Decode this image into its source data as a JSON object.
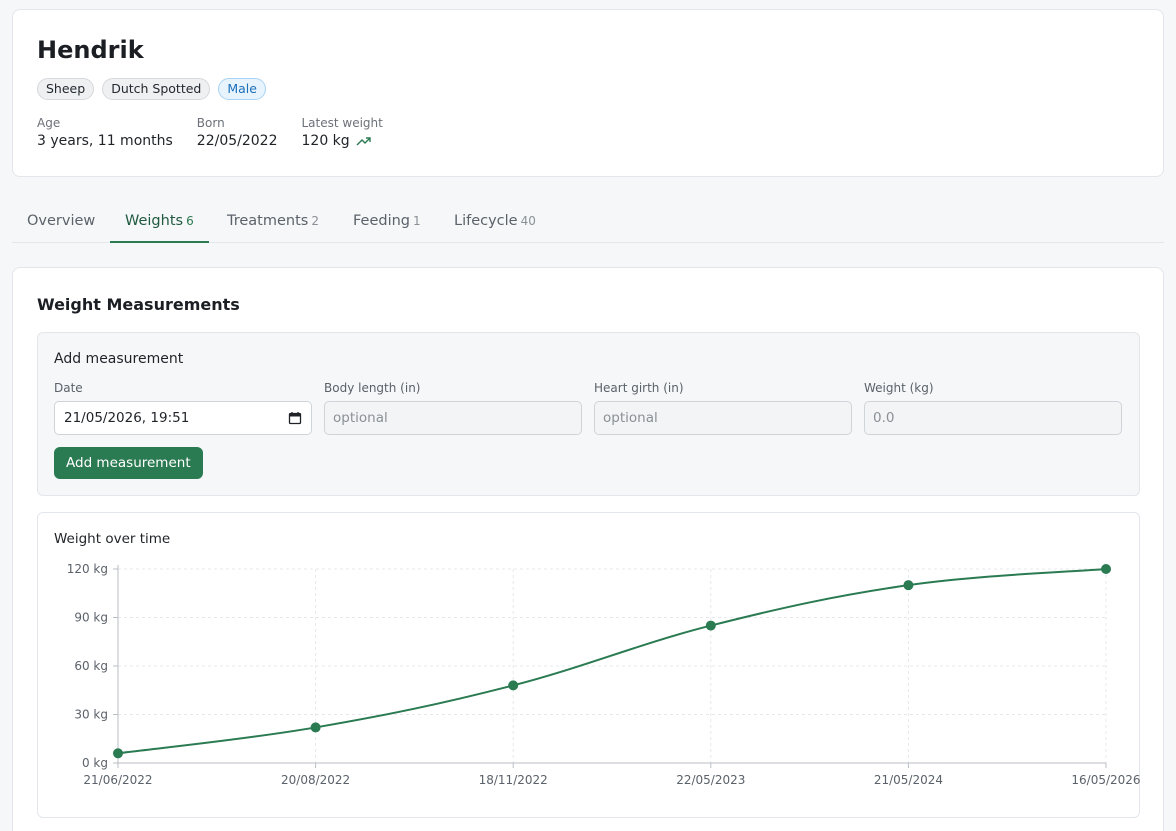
{
  "animal": {
    "name": "Hendrik",
    "tags": [
      "Sheep",
      "Dutch Spotted",
      "Male"
    ],
    "stats": [
      {
        "label": "Age",
        "value": "3 years, 11 months"
      },
      {
        "label": "Born",
        "value": "22/05/2022"
      },
      {
        "label": "Latest weight",
        "value": "120 kg",
        "icon": "trending-up-icon"
      }
    ]
  },
  "tabs": [
    {
      "label": "Overview",
      "count": ""
    },
    {
      "label": "Weights",
      "count": "6",
      "active": true
    },
    {
      "label": "Treatments",
      "count": "2"
    },
    {
      "label": "Feeding",
      "count": "1"
    },
    {
      "label": "Lifecycle",
      "count": "40"
    }
  ],
  "section": {
    "title": "Weight Measurements"
  },
  "form": {
    "title": "Add measurement",
    "date_label": "Date",
    "date_value": "21/05/2026, 19:51",
    "body_length_label": "Body length (in)",
    "body_length_placeholder": "optional",
    "heart_girth_label": "Heart girth (in)",
    "heart_girth_placeholder": "optional",
    "weight_label": "Weight (kg)",
    "weight_placeholder": "0.0",
    "submit_label": "Add measurement"
  },
  "colors": {
    "accent": "#2a7a52",
    "line": "#2a7a52",
    "male_tag": "#1d6fb8"
  },
  "chart_data": {
    "type": "line",
    "title": "Weight over time",
    "categories": [
      "21/06/2022",
      "20/08/2022",
      "18/11/2022",
      "22/05/2023",
      "21/05/2024",
      "16/05/2026"
    ],
    "series": [
      {
        "values": [
          6,
          22,
          48,
          85,
          110,
          120
        ]
      }
    ],
    "yticks": [
      "0 kg",
      "30 kg",
      "60 kg",
      "90 kg",
      "120 kg"
    ],
    "ylim": [
      0,
      120
    ],
    "grid": true
  }
}
